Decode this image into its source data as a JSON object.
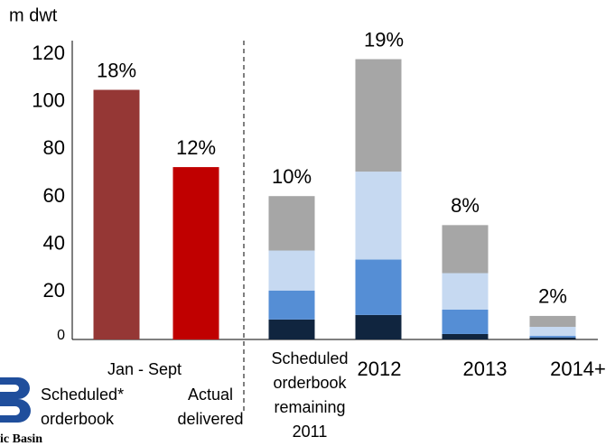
{
  "chart_data": {
    "type": "stacked_bar",
    "unit_label": "m dwt",
    "group_label": "Jan - Sept",
    "categories": [
      "Scheduled*\norderbook",
      "Actual\ndelivered",
      "Scheduled\norderbook\nremaining\n2011",
      "2012",
      "2013",
      "2014+"
    ],
    "series": [
      {
        "colors": [
          "#953735",
          "#c00000",
          null,
          null,
          null,
          null
        ],
        "values": [
          105,
          72.5,
          null,
          null,
          null,
          null
        ]
      },
      {
        "color": "#10253f",
        "values": [
          null,
          null,
          8.4,
          10.3,
          2.3,
          0.8
        ]
      },
      {
        "color": "#558ed5",
        "values": [
          null,
          null,
          12.2,
          23.3,
          10.3,
          0.7
        ]
      },
      {
        "color": "#c6d9f1",
        "values": [
          null,
          null,
          16.8,
          37,
          15.3,
          3.8
        ]
      },
      {
        "color": "#a6a6a6",
        "values": [
          null,
          null,
          22.9,
          47.3,
          20.2,
          4.6
        ]
      }
    ],
    "annotations": [
      "18%",
      "12%",
      "10%",
      "19%",
      "8%",
      "2%"
    ],
    "ylim": [
      0,
      120
    ],
    "yticks": [
      0,
      20,
      40,
      60,
      80,
      100,
      120
    ],
    "logo_text": "ic Basin"
  }
}
